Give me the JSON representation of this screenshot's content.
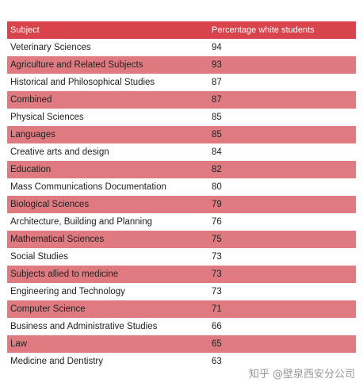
{
  "table": {
    "headers": {
      "subject": "Subject",
      "percentage": "Percentage white students"
    },
    "rows": [
      {
        "subject": "Veterinary Sciences",
        "percentage": "94"
      },
      {
        "subject": "Agriculture and Related Subjects",
        "percentage": "93"
      },
      {
        "subject": "Historical and Philosophical Studies",
        "percentage": "87"
      },
      {
        "subject": "Combined",
        "percentage": "87"
      },
      {
        "subject": "Physical Sciences",
        "percentage": "85"
      },
      {
        "subject": "Languages",
        "percentage": "85"
      },
      {
        "subject": "Creative arts and design",
        "percentage": "84"
      },
      {
        "subject": "Education",
        "percentage": "82"
      },
      {
        "subject": "Mass Communications Documentation",
        "percentage": "80"
      },
      {
        "subject": "Biological Sciences",
        "percentage": "79"
      },
      {
        "subject": "Architecture, Building and Planning",
        "percentage": "76"
      },
      {
        "subject": "Mathematical Sciences",
        "percentage": "75"
      },
      {
        "subject": "Social Studies",
        "percentage": "73"
      },
      {
        "subject": "Subjects allied to medicine",
        "percentage": "73"
      },
      {
        "subject": "Engineering and Technology",
        "percentage": "73"
      },
      {
        "subject": "Computer Science",
        "percentage": "71"
      },
      {
        "subject": "Business and Administrative Studies",
        "percentage": "66"
      },
      {
        "subject": "Law",
        "percentage": "65"
      },
      {
        "subject": "Medicine and Dentistry",
        "percentage": "63"
      }
    ],
    "colors": {
      "header_bg": "#d9434b",
      "shaded_row_bg": "#df7b80",
      "plain_row_bg": "#ffffff"
    }
  },
  "watermark": {
    "text": "知乎 @壁泉西安分公司"
  }
}
